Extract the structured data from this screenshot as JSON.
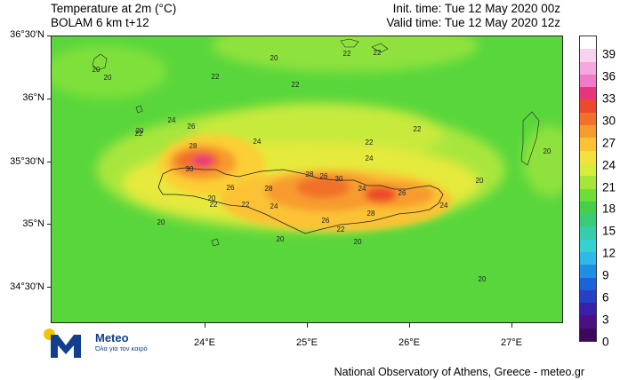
{
  "header": {
    "title_line1": "Temperature at 2m (°C)",
    "title_line2": "BOLAM 6 km t+12",
    "init_time": "Init. time: Tue 12 May 2020 00z",
    "valid_time": "Valid time: Tue 12 May 2020 12z"
  },
  "axes": {
    "lat_labels": [
      "36°30'N",
      "36°N",
      "35°30'N",
      "35°N",
      "34°30'N"
    ],
    "lon_labels": [
      "24°E",
      "25°E",
      "26°E",
      "27°E"
    ]
  },
  "colorbar": {
    "labels": [
      "39",
      "36",
      "33",
      "30",
      "27",
      "24",
      "21",
      "18",
      "15",
      "12",
      "9",
      "6",
      "3",
      "0"
    ],
    "colors": [
      "#ffffff",
      "#f7d3f0",
      "#f3a9e0",
      "#ef7ac8",
      "#e8337e",
      "#ec4a2c",
      "#f1702c",
      "#f79b2e",
      "#fbc235",
      "#f4e13b",
      "#d9ec3c",
      "#a6e63b",
      "#6fdc3a",
      "#45cf48",
      "#3acb77",
      "#37ccaa",
      "#36d2d3",
      "#2fb8e8",
      "#1f8fe6",
      "#1b63d6",
      "#2740c4",
      "#3a1fa8",
      "#4b1083",
      "#3c0a5a"
    ]
  },
  "map_labels": [
    {
      "text": "20"
    },
    {
      "text": "22"
    },
    {
      "text": "20"
    },
    {
      "text": "22"
    },
    {
      "text": "22"
    },
    {
      "text": "20"
    },
    {
      "text": "22"
    },
    {
      "text": "22"
    },
    {
      "text": "24"
    },
    {
      "text": "26"
    },
    {
      "text": "28"
    },
    {
      "text": "30"
    },
    {
      "text": "24"
    },
    {
      "text": "22"
    },
    {
      "text": "24"
    },
    {
      "text": "22"
    },
    {
      "text": "20"
    },
    {
      "text": "22"
    },
    {
      "text": "20"
    },
    {
      "text": "26"
    },
    {
      "text": "28"
    },
    {
      "text": "24"
    },
    {
      "text": "22"
    },
    {
      "text": "28"
    },
    {
      "text": "26"
    },
    {
      "text": "30"
    },
    {
      "text": "24"
    },
    {
      "text": "26"
    },
    {
      "text": "28"
    },
    {
      "text": "26"
    },
    {
      "text": "24"
    },
    {
      "text": "22"
    },
    {
      "text": "20"
    },
    {
      "text": "20"
    },
    {
      "text": "20"
    },
    {
      "text": "20"
    },
    {
      "text": "20"
    },
    {
      "text": "20"
    }
  ],
  "logo": {
    "name": "Meteo",
    "tagline": "Όλα για τον καιρό"
  },
  "credit": "National Observatory of Athens, Greece - meteo.gr"
}
